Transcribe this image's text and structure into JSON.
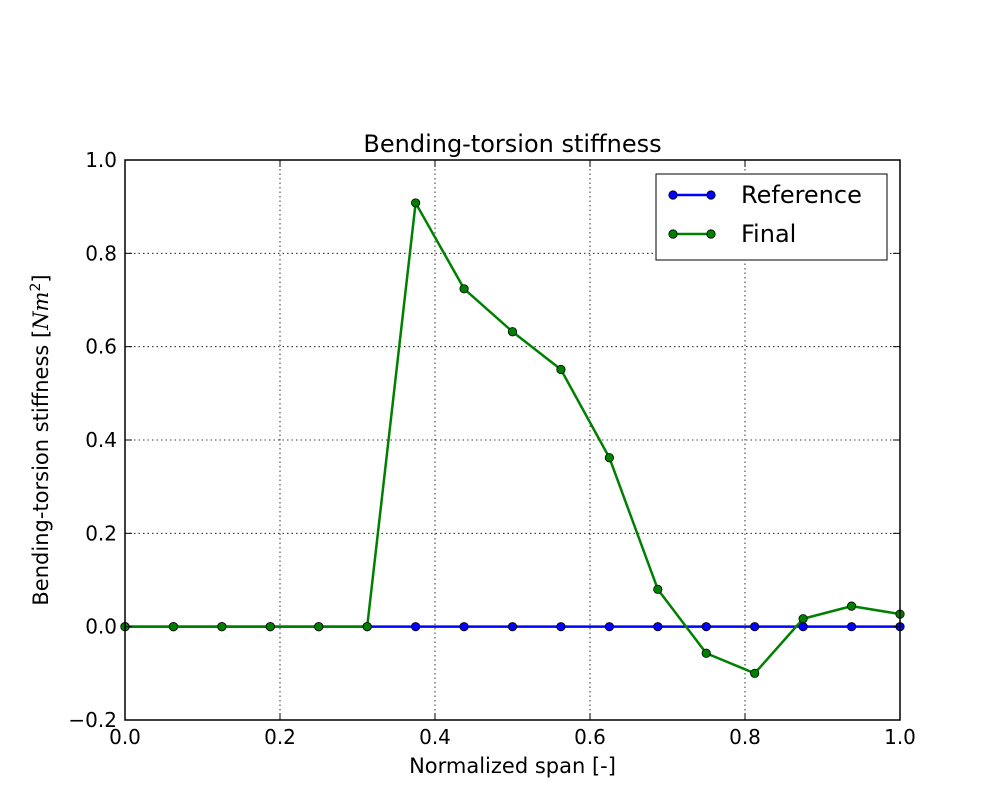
{
  "chart_data": {
    "type": "line",
    "title": "Bending-torsion stiffness",
    "xlabel": "Normalized span [-]",
    "ylabel": "Bending-torsion stiffness [",
    "ylabel_unit": "Nm",
    "ylabel_unit_exponent": "2",
    "ylabel_close": "]",
    "xlim": [
      0.0,
      1.0
    ],
    "ylim": [
      -0.2,
      1.0
    ],
    "x_ticks": [
      0.0,
      0.2,
      0.4,
      0.6,
      0.8,
      1.0
    ],
    "x_tick_labels": [
      "0.0",
      "0.2",
      "0.4",
      "0.6",
      "0.8",
      "1.0"
    ],
    "y_ticks": [
      -0.2,
      0.0,
      0.2,
      0.4,
      0.6,
      0.8,
      1.0
    ],
    "y_tick_labels": [
      "−0.2",
      "0.0",
      "0.2",
      "0.4",
      "0.6",
      "0.8",
      "1.0"
    ],
    "grid": true,
    "legend_position": "top-right",
    "x": [
      0.0,
      0.0625,
      0.125,
      0.1875,
      0.25,
      0.3125,
      0.375,
      0.4375,
      0.5,
      0.5625,
      0.625,
      0.6875,
      0.75,
      0.8125,
      0.875,
      0.9375,
      1.0
    ],
    "series": [
      {
        "name": "Reference",
        "color": "#0000ff",
        "values": [
          0,
          0,
          0,
          0,
          0,
          0,
          0,
          0,
          0,
          0,
          0,
          0,
          0,
          0,
          0,
          0,
          0
        ]
      },
      {
        "name": "Final",
        "color": "#008000",
        "values": [
          0,
          0,
          0,
          0,
          0,
          0,
          0.908,
          0.724,
          0.632,
          0.551,
          0.362,
          0.08,
          -0.057,
          -0.1,
          0.017,
          0.044,
          0.027
        ]
      }
    ]
  }
}
